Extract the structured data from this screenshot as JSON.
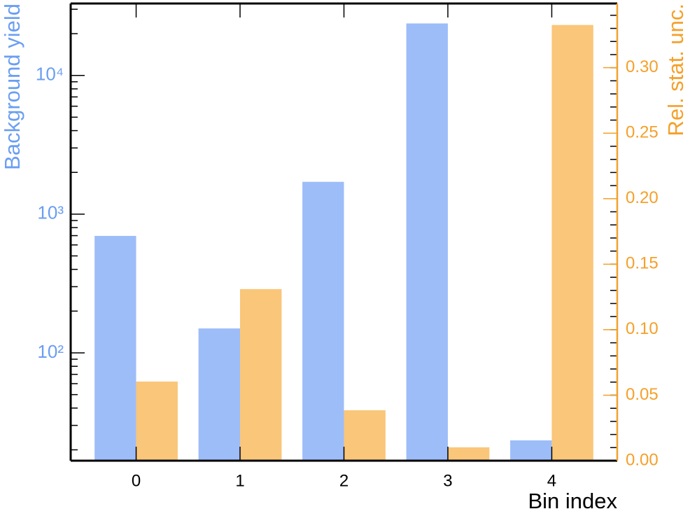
{
  "chart_data": {
    "type": "bar",
    "x": [
      0,
      1,
      2,
      3,
      4
    ],
    "xlim": [
      -0.63,
      4.63
    ],
    "xticks": [
      0,
      1,
      2,
      3,
      4
    ],
    "xlabel": "Bin index",
    "ylabel": "Background yield",
    "y2label": "Rel. stat. unc.",
    "ylog": true,
    "ylim": [
      16.7,
      33000
    ],
    "yticks": [
      {
        "value": 100,
        "label": "10²"
      },
      {
        "value": 1000,
        "label": "10³"
      },
      {
        "value": 10000,
        "label": "10⁴"
      }
    ],
    "y2lim": [
      0,
      0.349
    ],
    "y2ticks": [
      {
        "value": 0,
        "label": "0.00"
      },
      0.05,
      {
        "value": 0.1,
        "label": "0.10"
      },
      0.15,
      {
        "value": 0.2,
        "label": "0.20"
      },
      0.25,
      {
        "value": 0.3,
        "label": "0.30"
      }
    ],
    "ylabel_color": "#6a9ef2",
    "y2label_color": "#f5a02a",
    "series": [
      {
        "color": "#9dbdf8",
        "values": [
          697,
          150,
          1710,
          23700,
          23.4
        ]
      },
      {
        "color": "#fac67a",
        "axis": "y2",
        "values": [
          0.0604,
          0.131,
          0.0385,
          0.0102,
          0.3326
        ]
      }
    ]
  }
}
